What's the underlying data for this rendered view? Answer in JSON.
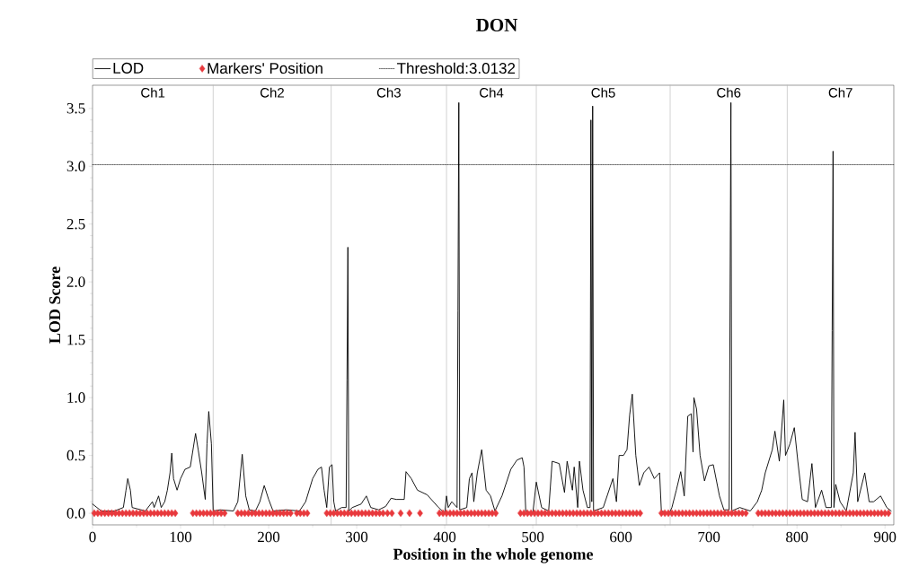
{
  "chart_data": {
    "type": "line",
    "title": "DON",
    "xlabel": "Position in the whole genome",
    "ylabel": "LOD Score",
    "xlim": [
      0,
      910
    ],
    "ylim": [
      -0.1,
      3.7
    ],
    "xticks": [
      0,
      100,
      200,
      300,
      400,
      500,
      600,
      700,
      800,
      900
    ],
    "yticks": [
      {
        "value": 0,
        "label": "0.0"
      },
      {
        "value": 0.5,
        "label": "0.5"
      },
      {
        "value": 1,
        "label": "1.0"
      },
      {
        "value": 1.5,
        "label": "1.5"
      },
      {
        "value": 2,
        "label": "2.0"
      },
      {
        "value": 2.5,
        "label": "2.5"
      },
      {
        "value": 3,
        "label": "3.0"
      },
      {
        "value": 3.5,
        "label": "3.5"
      }
    ],
    "legend": "top",
    "series": [
      {
        "name": "LOD",
        "type": "line",
        "color": "#000000",
        "marker": "none",
        "line_style": "solid",
        "x": [
          0,
          5,
          10,
          25,
          35,
          38,
          40,
          43,
          45,
          60,
          68,
          70,
          75,
          78,
          82,
          85,
          88,
          90,
          92,
          96,
          100,
          105,
          111,
          117,
          120,
          124,
          128,
          130,
          132,
          135,
          137,
          145,
          160,
          165,
          170,
          174,
          178,
          185,
          190,
          195,
          200,
          205,
          220,
          235,
          242,
          250,
          256,
          260,
          263,
          266,
          269,
          272,
          274,
          276,
          283,
          288,
          289,
          290,
          291,
          295,
          305,
          311,
          316,
          325,
          333,
          339,
          345,
          354,
          356,
          362,
          369,
          380,
          393,
          400,
          402,
          404,
          408,
          414,
          415,
          416,
          417,
          425,
          428,
          431,
          433,
          437,
          442,
          447,
          452,
          457,
          465,
          475,
          482,
          488,
          490,
          492,
          500,
          504,
          510,
          518,
          522,
          530,
          536,
          539,
          545,
          547,
          551,
          553,
          557,
          562,
          565,
          566,
          567,
          568,
          569,
          580,
          591,
          595,
          598,
          603,
          607,
          610,
          613,
          617,
          621,
          626,
          632,
          638,
          644,
          646,
          655,
          658,
          663,
          668,
          672,
          676,
          680,
          682,
          683,
          686,
          690,
          695,
          700,
          705,
          712,
          717,
          723,
          724,
          725,
          726,
          735,
          747,
          755,
          760,
          764,
          768,
          772,
          775,
          780,
          785,
          787,
          792,
          797,
          801,
          806,
          812,
          817,
          821,
          828,
          833,
          839,
          840,
          841,
          842,
          844,
          849,
          856,
          864,
          866,
          869,
          877,
          882,
          887,
          895,
          902,
          907
        ],
        "values": [
          0.08,
          0.05,
          0.02,
          0.02,
          0.05,
          0.2,
          0.3,
          0.2,
          0.05,
          0.02,
          0.1,
          0.05,
          0.15,
          0.05,
          0.1,
          0.2,
          0.35,
          0.52,
          0.3,
          0.2,
          0.3,
          0.38,
          0.4,
          0.69,
          0.55,
          0.35,
          0.12,
          0.6,
          0.88,
          0.6,
          0.02,
          0.03,
          0.02,
          0.1,
          0.51,
          0.15,
          0.03,
          0.02,
          0.1,
          0.24,
          0.12,
          0.02,
          0.03,
          0.02,
          0.1,
          0.3,
          0.38,
          0.4,
          0.2,
          0.05,
          0.4,
          0.42,
          0.1,
          0.02,
          0.05,
          0.05,
          1.15,
          2.3,
          0.02,
          0.05,
          0.08,
          0.15,
          0.05,
          0.03,
          0.06,
          0.13,
          0.12,
          0.12,
          0.36,
          0.3,
          0.2,
          0.16,
          0.05,
          0.0,
          0.15,
          0.05,
          0.1,
          0.05,
          1.75,
          3.55,
          0.03,
          0.05,
          0.3,
          0.35,
          0.1,
          0.35,
          0.55,
          0.2,
          0.15,
          0.02,
          0.15,
          0.38,
          0.46,
          0.48,
          0.4,
          0.02,
          0.0,
          0.27,
          0.05,
          0.02,
          0.45,
          0.43,
          0.18,
          0.45,
          0.2,
          0.4,
          0.05,
          0.45,
          0.2,
          0.05,
          0.05,
          3.4,
          0.1,
          3.52,
          0.02,
          0.05,
          0.3,
          0.1,
          0.5,
          0.5,
          0.55,
          0.85,
          1.03,
          0.5,
          0.24,
          0.35,
          0.4,
          0.3,
          0.35,
          0.02,
          0.0,
          0.05,
          0.2,
          0.36,
          0.15,
          0.84,
          0.86,
          0.53,
          1.0,
          0.9,
          0.5,
          0.28,
          0.41,
          0.42,
          0.15,
          0.03,
          0.03,
          1.8,
          3.55,
          0.02,
          0.05,
          0.02,
          0.1,
          0.2,
          0.35,
          0.45,
          0.55,
          0.71,
          0.45,
          0.98,
          0.5,
          0.6,
          0.74,
          0.45,
          0.12,
          0.1,
          0.43,
          0.05,
          0.2,
          0.05,
          0.05,
          1.58,
          3.13,
          0.05,
          0.25,
          0.1,
          0.02,
          0.35,
          0.7,
          0.1,
          0.35,
          0.1,
          0.1,
          0.15,
          0.05,
          0.02
        ]
      },
      {
        "name": "Markers' Position",
        "type": "scatter",
        "color": "#e8393d",
        "marker": "diamond",
        "x": [
          2,
          6,
          10,
          14,
          18,
          22,
          26,
          30,
          34,
          38,
          42,
          46,
          50,
          54,
          58,
          62,
          66,
          70,
          74,
          78,
          82,
          86,
          90,
          94,
          114,
          118,
          122,
          126,
          130,
          134,
          138,
          142,
          146,
          150,
          165,
          169,
          173,
          177,
          181,
          185,
          189,
          193,
          197,
          201,
          205,
          209,
          213,
          217,
          221,
          225,
          232,
          236,
          240,
          244,
          266,
          270,
          274,
          278,
          282,
          286,
          290,
          294,
          298,
          302,
          306,
          310,
          314,
          318,
          322,
          326,
          330,
          335,
          340,
          350,
          360,
          372,
          394,
          398,
          402,
          406,
          410,
          414,
          418,
          422,
          426,
          430,
          434,
          438,
          442,
          446,
          450,
          454,
          458,
          486,
          490,
          494,
          498,
          502,
          506,
          510,
          514,
          518,
          522,
          526,
          530,
          534,
          538,
          542,
          546,
          550,
          554,
          558,
          562,
          566,
          570,
          574,
          578,
          582,
          586,
          590,
          594,
          598,
          602,
          606,
          610,
          614,
          618,
          622,
          646,
          650,
          654,
          658,
          662,
          666,
          670,
          674,
          678,
          682,
          686,
          690,
          694,
          698,
          702,
          706,
          710,
          714,
          718,
          722,
          726,
          730,
          734,
          738,
          742,
          756,
          760,
          764,
          768,
          772,
          776,
          780,
          784,
          788,
          792,
          796,
          800,
          804,
          808,
          812,
          816,
          820,
          824,
          828,
          832,
          836,
          840,
          844,
          848,
          852,
          856,
          860,
          864,
          868,
          872,
          876,
          880,
          884,
          888,
          892,
          896,
          900,
          904
        ],
        "values": [
          0,
          0,
          0,
          0,
          0,
          0,
          0,
          0,
          0,
          0,
          0,
          0,
          0,
          0,
          0,
          0,
          0,
          0,
          0,
          0,
          0,
          0,
          0,
          0,
          0,
          0,
          0,
          0,
          0,
          0,
          0,
          0,
          0,
          0,
          0,
          0,
          0,
          0,
          0,
          0,
          0,
          0,
          0,
          0,
          0,
          0,
          0,
          0,
          0,
          0,
          0,
          0,
          0,
          0,
          0,
          0,
          0,
          0,
          0,
          0,
          0,
          0,
          0,
          0,
          0,
          0,
          0,
          0,
          0,
          0,
          0,
          0,
          0,
          0,
          0,
          0,
          0,
          0,
          0,
          0,
          0,
          0,
          0,
          0,
          0,
          0,
          0,
          0,
          0,
          0,
          0,
          0,
          0,
          0,
          0,
          0,
          0,
          0,
          0,
          0,
          0,
          0,
          0,
          0,
          0,
          0,
          0,
          0,
          0,
          0,
          0,
          0,
          0,
          0,
          0,
          0,
          0,
          0,
          0,
          0,
          0,
          0,
          0,
          0,
          0,
          0,
          0,
          0,
          0,
          0,
          0,
          0,
          0,
          0,
          0,
          0,
          0,
          0,
          0,
          0,
          0,
          0,
          0,
          0,
          0,
          0,
          0,
          0,
          0,
          0,
          0,
          0,
          0,
          0,
          0,
          0,
          0,
          0,
          0,
          0,
          0,
          0,
          0,
          0,
          0,
          0,
          0,
          0,
          0,
          0,
          0,
          0,
          0,
          0,
          0,
          0,
          0,
          0,
          0,
          0,
          0,
          0,
          0,
          0,
          0,
          0,
          0,
          0,
          0,
          0,
          0
        ]
      }
    ],
    "ref_lines": [
      {
        "axis": "x",
        "value": 137,
        "color": "#b4b4b4",
        "line_style": "solid"
      },
      {
        "axis": "x",
        "value": 271,
        "color": "#b4b4b4",
        "line_style": "solid"
      },
      {
        "axis": "x",
        "value": 402,
        "color": "#b4b4b4",
        "line_style": "solid"
      },
      {
        "axis": "x",
        "value": 504,
        "color": "#b4b4b4",
        "line_style": "solid"
      },
      {
        "axis": "x",
        "value": 656,
        "color": "#b4b4b4",
        "line_style": "solid"
      },
      {
        "axis": "x",
        "value": 789,
        "color": "#b4b4b4",
        "line_style": "solid"
      },
      {
        "axis": "y",
        "value": 3.0132,
        "label": "Threshold:3.0132",
        "color": "#000000",
        "line_style": "dotted"
      }
    ],
    "annotations": [
      "Ch1",
      "Ch2",
      "Ch3",
      "Ch4",
      "Ch5",
      "Ch6",
      "Ch7"
    ]
  }
}
